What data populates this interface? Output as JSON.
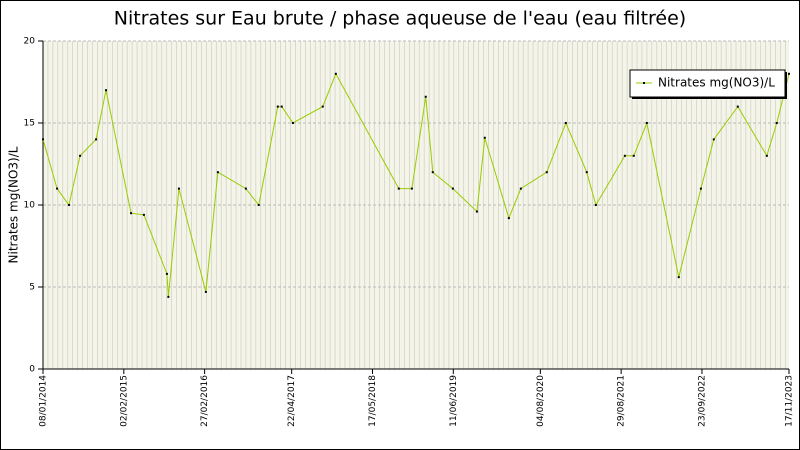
{
  "chart_data": {
    "type": "line",
    "title": "Nitrates sur Eau brute / phase aqueuse de l'eau (eau filtrée)",
    "y_label": "Nitrates mg(NO3)/L",
    "x": [
      "2014-01-08",
      "2014-03-17",
      "2014-05-13",
      "2014-07-06",
      "2014-09-21",
      "2014-11-08",
      "2015-03-09",
      "2015-05-10",
      "2015-08-29",
      "2015-09-05",
      "2015-10-26",
      "2016-03-04",
      "2016-05-01",
      "2016-09-13",
      "2016-11-14",
      "2017-02-14",
      "2017-03-05",
      "2017-04-28",
      "2017-09-19",
      "2017-11-21",
      "2018-09-21",
      "2018-11-23",
      "2019-01-29",
      "2019-03-04",
      "2019-06-09",
      "2019-10-03",
      "2019-11-10",
      "2020-03-05",
      "2020-05-02",
      "2020-09-04",
      "2020-12-05",
      "2021-03-16",
      "2021-04-29",
      "2021-09-16",
      "2021-10-29",
      "2021-12-31",
      "2022-06-03",
      "2022-09-18",
      "2022-11-19",
      "2023-03-15",
      "2023-08-02",
      "2023-09-19",
      "2023-11-17"
    ],
    "series": [
      {
        "name": "Nitrates mg(NO3)/L",
        "color": "#99cc00",
        "values": [
          14,
          11,
          10,
          13,
          14,
          17,
          9.5,
          9.4,
          5.8,
          4.4,
          11,
          4.7,
          12,
          11,
          10,
          16,
          16,
          15,
          16,
          18,
          11,
          11,
          16.6,
          12,
          11,
          9.6,
          14.1,
          9.2,
          11,
          12,
          15,
          12,
          10,
          13,
          13,
          15,
          5.6,
          11,
          14,
          16,
          13,
          15,
          18
        ]
      }
    ],
    "xlim": [
      "2014-01-08",
      "2023-11-17"
    ],
    "xticks": [
      {
        "value": "2014-01-08",
        "label": "08/01/2014"
      },
      {
        "value": "2015-02-02",
        "label": "02/02/2015"
      },
      {
        "value": "2016-02-27",
        "label": "27/02/2016"
      },
      {
        "value": "2017-04-22",
        "label": "22/04/2017"
      },
      {
        "value": "2018-05-17",
        "label": "17/05/2018"
      },
      {
        "value": "2019-06-11",
        "label": "11/06/2019"
      },
      {
        "value": "2020-08-04",
        "label": "04/08/2020"
      },
      {
        "value": "2021-08-29",
        "label": "29/08/2021"
      },
      {
        "value": "2022-09-23",
        "label": "23/09/2022"
      },
      {
        "value": "2023-11-17",
        "label": "17/11/2023"
      }
    ],
    "ylim": [
      0,
      20
    ],
    "yticks": [
      0,
      5,
      10,
      15,
      20
    ],
    "grid": true,
    "legend": "upper right"
  }
}
